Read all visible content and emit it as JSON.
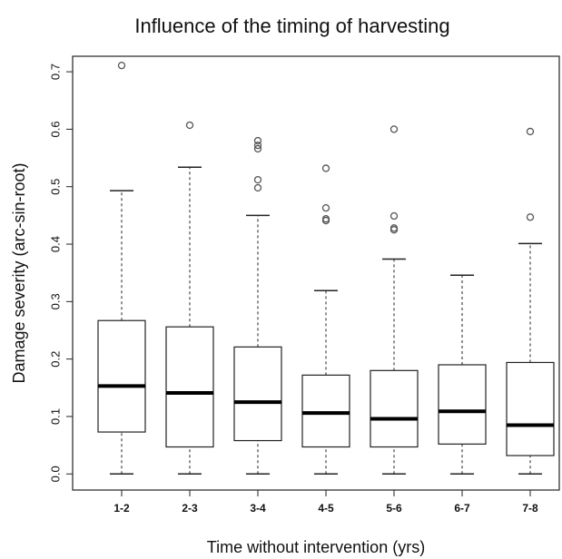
{
  "chart_data": {
    "type": "box",
    "title": "Influence of the timing of harvesting",
    "x_label": "Time without intervention (yrs)",
    "y_label": "Damage severity (arc-sin-root)",
    "categories": [
      "1-2",
      "2-3",
      "3-4",
      "4-5",
      "5-6",
      "6-7",
      "7-8"
    ],
    "boxes": [
      {
        "whislo": 0,
        "q1": 0.073,
        "med": 0.153,
        "q3": 0.267,
        "whishi": 0.493,
        "fliers": [
          0.711
        ]
      },
      {
        "whislo": 0,
        "q1": 0.047,
        "med": 0.141,
        "q3": 0.256,
        "whishi": 0.534,
        "fliers": [
          0.607
        ]
      },
      {
        "whislo": 0,
        "q1": 0.058,
        "med": 0.125,
        "q3": 0.221,
        "whishi": 0.45,
        "fliers": [
          0.58,
          0.572,
          0.566,
          0.512,
          0.498
        ]
      },
      {
        "whislo": 0,
        "q1": 0.047,
        "med": 0.106,
        "q3": 0.172,
        "whishi": 0.319,
        "fliers": [
          0.532,
          0.463,
          0.444,
          0.441
        ]
      },
      {
        "whislo": 0,
        "q1": 0.047,
        "med": 0.096,
        "q3": 0.18,
        "whishi": 0.374,
        "fliers": [
          0.6,
          0.449,
          0.428,
          0.425
        ]
      },
      {
        "whislo": 0,
        "q1": 0.052,
        "med": 0.109,
        "q3": 0.19,
        "whishi": 0.346,
        "fliers": []
      },
      {
        "whislo": 0,
        "q1": 0.032,
        "med": 0.085,
        "q3": 0.194,
        "whishi": 0.401,
        "fliers": [
          0.596,
          0.447
        ]
      }
    ],
    "ylim": [
      -0.028,
      0.727
    ],
    "yticks": [
      {
        "value": 0,
        "label": "0.0"
      },
      0.1,
      0.2,
      0.3,
      0.4,
      0.5,
      0.6,
      0.7
    ],
    "color": "#ffffff"
  }
}
